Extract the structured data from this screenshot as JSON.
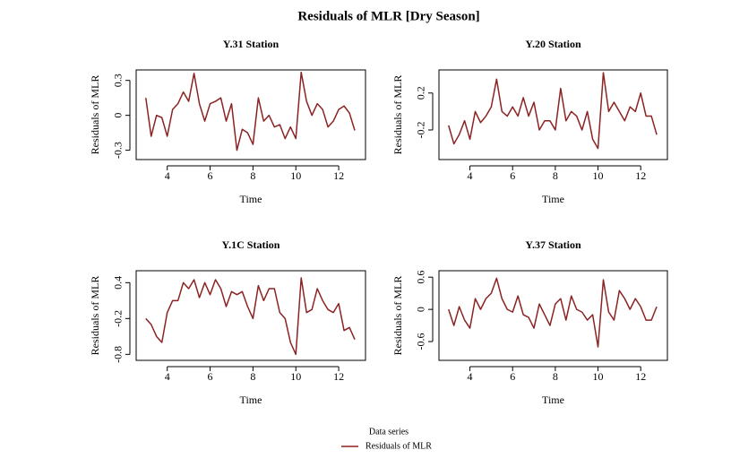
{
  "title": "Residuals of MLR [Dry Season]",
  "legend": {
    "title": "Data series"
  },
  "chart_data": [
    {
      "type": "line",
      "title": "Y.31 Station",
      "xlabel": "Time",
      "ylabel": "Residuals of MLR",
      "x": [
        3.0,
        3.25,
        3.5,
        3.75,
        4.0,
        4.25,
        4.5,
        4.75,
        5.0,
        5.25,
        5.5,
        5.75,
        6.0,
        6.25,
        6.5,
        6.75,
        7.0,
        7.25,
        7.5,
        7.75,
        8.0,
        8.25,
        8.5,
        8.75,
        9.0,
        9.25,
        9.5,
        9.75,
        10.0,
        10.25,
        10.5,
        10.75,
        11.0,
        11.25,
        11.5,
        11.75,
        12.0,
        12.25,
        12.5,
        12.75
      ],
      "series": [
        {
          "name": "Residuals of MLR",
          "color": "#8b2323",
          "values": [
            0.15,
            -0.18,
            0.0,
            -0.02,
            -0.18,
            0.05,
            0.1,
            0.2,
            0.12,
            0.36,
            0.1,
            -0.05,
            0.1,
            0.12,
            0.15,
            -0.05,
            0.1,
            -0.3,
            -0.12,
            -0.15,
            -0.25,
            0.15,
            -0.05,
            0.0,
            -0.1,
            -0.08,
            -0.2,
            -0.1,
            -0.2,
            0.37,
            0.12,
            0.0,
            0.1,
            0.05,
            -0.1,
            -0.05,
            0.05,
            0.08,
            0.02,
            -0.13
          ]
        }
      ],
      "xlim": [
        2.55,
        13.25
      ],
      "ylim": [
        -0.38,
        0.39
      ],
      "xticks": [
        4,
        6,
        8,
        10,
        12
      ],
      "yticks": [
        -0.3,
        0.0,
        0.3
      ]
    },
    {
      "type": "line",
      "title": "Y.20 Station",
      "xlabel": "Time",
      "ylabel": "Residuals of MLR",
      "x": [
        3.0,
        3.25,
        3.5,
        3.75,
        4.0,
        4.25,
        4.5,
        4.75,
        5.0,
        5.25,
        5.5,
        5.75,
        6.0,
        6.25,
        6.5,
        6.75,
        7.0,
        7.25,
        7.5,
        7.75,
        8.0,
        8.25,
        8.5,
        8.75,
        9.0,
        9.25,
        9.5,
        9.75,
        10.0,
        10.25,
        10.5,
        10.75,
        11.0,
        11.25,
        11.5,
        11.75,
        12.0,
        12.25,
        12.5,
        12.75
      ],
      "series": [
        {
          "name": "Residuals of MLR",
          "color": "#8b2323",
          "values": [
            -0.15,
            -0.35,
            -0.25,
            -0.1,
            -0.3,
            0.0,
            -0.12,
            -0.05,
            0.05,
            0.35,
            0.0,
            -0.05,
            0.05,
            -0.05,
            0.15,
            -0.05,
            0.1,
            -0.2,
            -0.1,
            -0.1,
            -0.2,
            0.25,
            -0.1,
            0.0,
            -0.05,
            -0.2,
            0.0,
            -0.3,
            -0.4,
            0.42,
            0.0,
            0.1,
            0.0,
            -0.1,
            0.05,
            0.0,
            0.2,
            -0.05,
            -0.05,
            -0.25
          ]
        }
      ],
      "xlim": [
        2.55,
        13.25
      ],
      "ylim": [
        -0.52,
        0.45
      ],
      "xticks": [
        4,
        6,
        8,
        10,
        12
      ],
      "yticks": [
        -0.2,
        0.2
      ]
    },
    {
      "type": "line",
      "title": "Y.1C Station",
      "xlabel": "Time",
      "ylabel": "Residuals of MLR",
      "x": [
        3.0,
        3.25,
        3.5,
        3.75,
        4.0,
        4.25,
        4.5,
        4.75,
        5.0,
        5.25,
        5.5,
        5.75,
        6.0,
        6.25,
        6.5,
        6.75,
        7.0,
        7.25,
        7.5,
        7.75,
        8.0,
        8.25,
        8.5,
        8.75,
        9.0,
        9.25,
        9.5,
        9.75,
        10.0,
        10.25,
        10.5,
        10.75,
        11.0,
        11.25,
        11.5,
        11.75,
        12.0,
        12.25,
        12.5,
        12.75
      ],
      "series": [
        {
          "name": "Residuals of MLR",
          "color": "#8b2323",
          "values": [
            -0.2,
            -0.3,
            -0.5,
            -0.6,
            -0.1,
            0.1,
            0.1,
            0.4,
            0.3,
            0.45,
            0.15,
            0.4,
            0.2,
            0.45,
            0.3,
            0.0,
            0.25,
            0.2,
            0.25,
            0.0,
            -0.2,
            0.35,
            0.1,
            0.3,
            0.3,
            -0.1,
            -0.2,
            -0.6,
            -0.8,
            0.48,
            -0.1,
            -0.05,
            0.3,
            0.1,
            -0.05,
            -0.1,
            0.05,
            -0.4,
            -0.35,
            -0.55
          ]
        }
      ],
      "xlim": [
        2.55,
        13.25
      ],
      "ylim": [
        -0.9,
        0.6
      ],
      "xticks": [
        4,
        6,
        8,
        10,
        12
      ],
      "yticks": [
        -0.8,
        -0.2,
        0.4
      ]
    },
    {
      "type": "line",
      "title": "Y.37 Station",
      "xlabel": "Time",
      "ylabel": "Residuals of MLR",
      "x": [
        3.0,
        3.25,
        3.5,
        3.75,
        4.0,
        4.25,
        4.5,
        4.75,
        5.0,
        5.25,
        5.5,
        5.75,
        6.0,
        6.25,
        6.5,
        6.75,
        7.0,
        7.25,
        7.5,
        7.75,
        8.0,
        8.25,
        8.5,
        8.75,
        9.0,
        9.25,
        9.5,
        9.75,
        10.0,
        10.25,
        10.5,
        10.75,
        11.0,
        11.25,
        11.5,
        11.75,
        12.0,
        12.25,
        12.5,
        12.75
      ],
      "series": [
        {
          "name": "Residuals of MLR",
          "color": "#8b2323",
          "values": [
            0.0,
            -0.3,
            0.05,
            -0.2,
            -0.35,
            0.2,
            0.0,
            0.2,
            0.3,
            0.58,
            0.2,
            0.0,
            -0.05,
            0.25,
            -0.1,
            -0.15,
            -0.35,
            0.1,
            -0.1,
            -0.3,
            0.1,
            0.2,
            -0.2,
            0.25,
            0.0,
            -0.05,
            -0.2,
            -0.1,
            -0.7,
            0.55,
            -0.05,
            -0.2,
            0.35,
            0.2,
            0.0,
            0.2,
            0.05,
            -0.2,
            -0.2,
            0.05
          ]
        }
      ],
      "xlim": [
        2.55,
        13.25
      ],
      "ylim": [
        -0.95,
        0.72
      ],
      "xticks": [
        4,
        6,
        8,
        10,
        12
      ],
      "yticks": [
        -0.6,
        0.0,
        0.6
      ]
    }
  ]
}
